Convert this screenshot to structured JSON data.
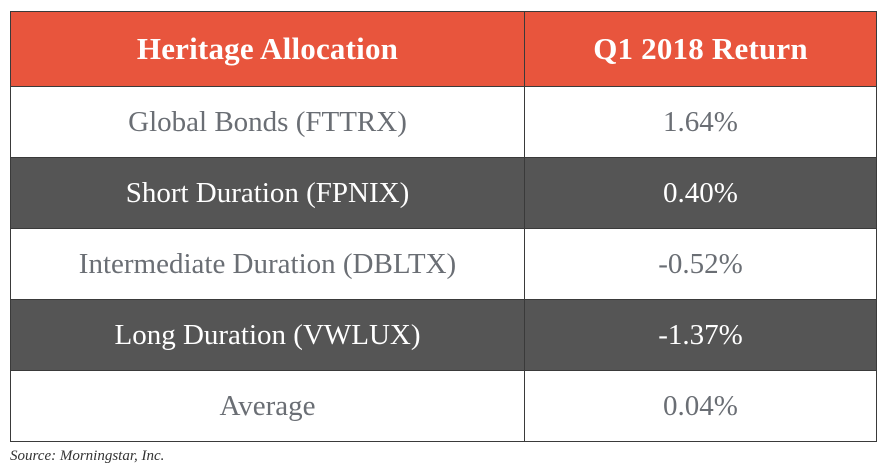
{
  "table": {
    "headers": [
      "Heritage Allocation",
      "Q1 2018 Return"
    ],
    "rows": [
      {
        "name": "Global Bonds (FTTRX)",
        "value": "1.64%",
        "style": "light"
      },
      {
        "name": "Short Duration (FPNIX)",
        "value": "0.40%",
        "style": "dark"
      },
      {
        "name": "Intermediate Duration (DBLTX)",
        "value": "-0.52%",
        "style": "light"
      },
      {
        "name": "Long Duration (VWLUX)",
        "value": "-1.37%",
        "style": "dark"
      },
      {
        "name": "Average",
        "value": "0.04%",
        "style": "light"
      }
    ]
  },
  "colors": {
    "header_bg": "#e8553d",
    "dark_row_bg": "#555555",
    "light_row_text": "#6a6e74"
  },
  "source": "Source: Morningstar, Inc."
}
